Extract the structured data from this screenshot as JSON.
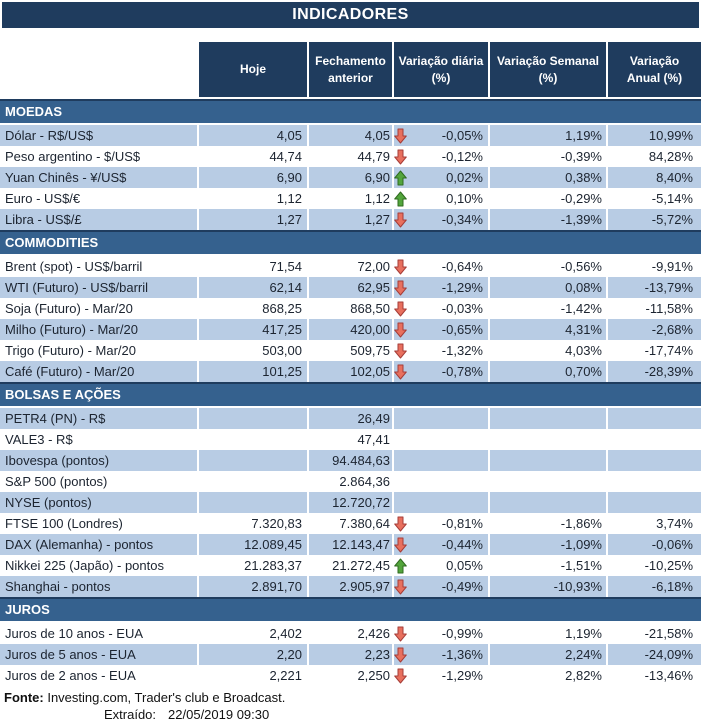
{
  "title": "INDICADORES",
  "colors": {
    "header_dark": "#1f3c5e",
    "section_bar": "#35618e",
    "row_shade": "#b8cce4",
    "text": "#1c2430",
    "arrow_down_fill": "#e8705e",
    "arrow_down_stroke": "#a63d38",
    "arrow_up_fill": "#53a53c",
    "arrow_up_stroke": "#2f6b1f"
  },
  "columns": [
    "Hoje",
    "Fechamento\nanterior",
    "Variação diária\n(%)",
    "Variação Semanal\n(%)",
    "Variação\nAnual (%)"
  ],
  "sections": [
    {
      "name": "MOEDAS",
      "rows": [
        {
          "label": "Dólar - R$/US$",
          "hoje": "4,05",
          "fechamento": "4,05",
          "arrow": "down",
          "var_diaria": "-0,05%",
          "var_semanal": "1,19%",
          "var_anual": "10,99%"
        },
        {
          "label": "Peso argentino - $/US$",
          "hoje": "44,74",
          "fechamento": "44,79",
          "arrow": "down",
          "var_diaria": "-0,12%",
          "var_semanal": "-0,39%",
          "var_anual": "84,28%"
        },
        {
          "label": "Yuan Chinês - ¥/US$",
          "hoje": "6,90",
          "fechamento": "6,90",
          "arrow": "up",
          "var_diaria": "0,02%",
          "var_semanal": "0,38%",
          "var_anual": "8,40%"
        },
        {
          "label": "Euro - US$/€",
          "hoje": "1,12",
          "fechamento": "1,12",
          "arrow": "up",
          "var_diaria": "0,10%",
          "var_semanal": "-0,29%",
          "var_anual": "-5,14%"
        },
        {
          "label": "Libra - US$/£",
          "hoje": "1,27",
          "fechamento": "1,27",
          "arrow": "down",
          "var_diaria": "-0,34%",
          "var_semanal": "-1,39%",
          "var_anual": "-5,72%"
        }
      ]
    },
    {
      "name": "COMMODITIES",
      "rows": [
        {
          "label": "Brent (spot) - US$/barril",
          "hoje": "71,54",
          "fechamento": "72,00",
          "arrow": "down",
          "var_diaria": "-0,64%",
          "var_semanal": "-0,56%",
          "var_anual": "-9,91%"
        },
        {
          "label": "WTI (Futuro) - US$/barril",
          "hoje": "62,14",
          "fechamento": "62,95",
          "arrow": "down",
          "var_diaria": "-1,29%",
          "var_semanal": "0,08%",
          "var_anual": "-13,79%"
        },
        {
          "label": "Soja (Futuro) - Mar/20",
          "hoje": "868,25",
          "fechamento": "868,50",
          "arrow": "down",
          "var_diaria": "-0,03%",
          "var_semanal": "-1,42%",
          "var_anual": "-11,58%"
        },
        {
          "label": "Milho (Futuro) - Mar/20",
          "hoje": "417,25",
          "fechamento": "420,00",
          "arrow": "down",
          "var_diaria": "-0,65%",
          "var_semanal": "4,31%",
          "var_anual": "-2,68%"
        },
        {
          "label": "Trigo (Futuro) - Mar/20",
          "hoje": "503,00",
          "fechamento": "509,75",
          "arrow": "down",
          "var_diaria": "-1,32%",
          "var_semanal": "4,03%",
          "var_anual": "-17,74%"
        },
        {
          "label": "Café (Futuro) - Mar/20",
          "hoje": "101,25",
          "fechamento": "102,05",
          "arrow": "down",
          "var_diaria": "-0,78%",
          "var_semanal": "0,70%",
          "var_anual": "-28,39%"
        }
      ]
    },
    {
      "name": "BOLSAS E AÇÕES",
      "rows": [
        {
          "label": "PETR4 (PN) - R$",
          "hoje": "",
          "fechamento": "26,49",
          "arrow": "",
          "var_diaria": "",
          "var_semanal": "",
          "var_anual": ""
        },
        {
          "label": "VALE3 - R$",
          "hoje": "",
          "fechamento": "47,41",
          "arrow": "",
          "var_diaria": "",
          "var_semanal": "",
          "var_anual": ""
        },
        {
          "label": "Ibovespa (pontos)",
          "hoje": "",
          "fechamento": "94.484,63",
          "arrow": "",
          "var_diaria": "",
          "var_semanal": "",
          "var_anual": ""
        },
        {
          "label": "S&P 500 (pontos)",
          "hoje": "",
          "fechamento": "2.864,36",
          "arrow": "",
          "var_diaria": "",
          "var_semanal": "",
          "var_anual": ""
        },
        {
          "label": "NYSE (pontos)",
          "hoje": "",
          "fechamento": "12.720,72",
          "arrow": "",
          "var_diaria": "",
          "var_semanal": "",
          "var_anual": ""
        },
        {
          "label": "FTSE 100 (Londres)",
          "hoje": "7.320,83",
          "fechamento": "7.380,64",
          "arrow": "down",
          "var_diaria": "-0,81%",
          "var_semanal": "-1,86%",
          "var_anual": "3,74%"
        },
        {
          "label": "DAX (Alemanha) - pontos",
          "hoje": "12.089,45",
          "fechamento": "12.143,47",
          "arrow": "down",
          "var_diaria": "-0,44%",
          "var_semanal": "-1,09%",
          "var_anual": "-0,06%"
        },
        {
          "label": "Nikkei 225 (Japão) - pontos",
          "hoje": "21.283,37",
          "fechamento": "21.272,45",
          "arrow": "up",
          "var_diaria": "0,05%",
          "var_semanal": "-1,51%",
          "var_anual": "-10,25%"
        },
        {
          "label": "Shanghai - pontos",
          "hoje": "2.891,70",
          "fechamento": "2.905,97",
          "arrow": "down",
          "var_diaria": "-0,49%",
          "var_semanal": "-10,93%",
          "var_anual": "-6,18%"
        }
      ]
    },
    {
      "name": "JUROS",
      "rows": [
        {
          "label": "Juros de 10 anos - EUA",
          "hoje": "2,402",
          "fechamento": "2,426",
          "arrow": "down",
          "var_diaria": "-0,99%",
          "var_semanal": "1,19%",
          "var_anual": "-21,58%"
        },
        {
          "label": "Juros de 5 anos - EUA",
          "hoje": "2,20",
          "fechamento": "2,23",
          "arrow": "down",
          "var_diaria": "-1,36%",
          "var_semanal": "2,24%",
          "var_anual": "-24,09%"
        },
        {
          "label": "Juros de 2 anos - EUA",
          "hoje": "2,221",
          "fechamento": "2,250",
          "arrow": "down",
          "var_diaria": "-1,29%",
          "var_semanal": "2,82%",
          "var_anual": "-13,46%"
        }
      ]
    }
  ],
  "footer": {
    "fonte_label": "Fonte:",
    "fonte_text": "Investing.com, Trader's club e Broadcast.",
    "extraido_label": "Extraído:",
    "extraido_value": "22/05/2019 09:30"
  }
}
